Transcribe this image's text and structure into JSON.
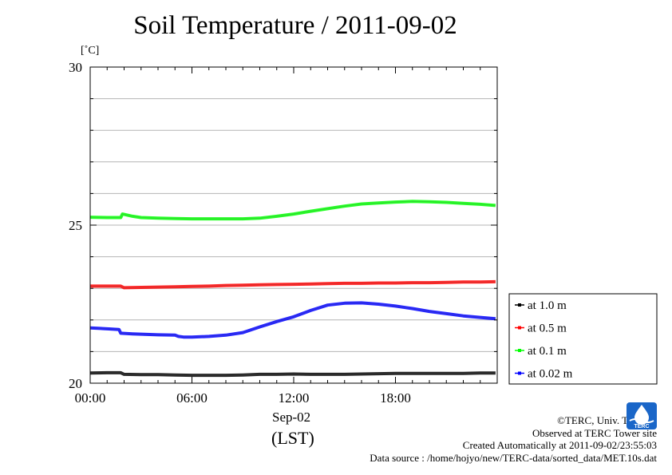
{
  "header": {
    "title": "Soil Temperature / 2011-09-02",
    "unit": "[˚C]"
  },
  "footer": {
    "date_label": "Sep-02",
    "timezone_label": "(LST)",
    "credits": [
      "©TERC, Univ. Tsukuba",
      "Observed at TERC Tower site",
      "Created Automatically at 2011-09-02/23:55:03",
      "Data source : /home/hojyo/new/TERC-data/sorted_data/MET.10s.dat"
    ],
    "logo_text": "TERC"
  },
  "chart_data": {
    "type": "line",
    "title": "Soil Temperature / 2011-09-02",
    "xlabel": "(LST)",
    "ylabel": "[˚C]",
    "xlim": [
      0,
      24
    ],
    "ylim": [
      20,
      30
    ],
    "x_ticks": [
      "00:00",
      "06:00",
      "12:00",
      "18:00"
    ],
    "y_ticks": [
      "20",
      "25",
      "30"
    ],
    "grid": true,
    "legend_position": "right",
    "series": [
      {
        "name": "at 1.0 m",
        "color": "#000000",
        "x": [
          0,
          1,
          1.8,
          2,
          3,
          4,
          5,
          6,
          7,
          8,
          9,
          10,
          11,
          12,
          13,
          14,
          15,
          16,
          17,
          18,
          19,
          20,
          21,
          22,
          23,
          23.9
        ],
        "y": [
          20.32,
          20.33,
          20.33,
          20.28,
          20.27,
          20.27,
          20.26,
          20.25,
          20.25,
          20.25,
          20.26,
          20.28,
          20.28,
          20.29,
          20.28,
          20.28,
          20.28,
          20.29,
          20.3,
          20.31,
          20.31,
          20.31,
          20.31,
          20.31,
          20.32,
          20.32
        ]
      },
      {
        "name": "at 0.5 m",
        "color": "#ff0000",
        "x": [
          0,
          1,
          1.8,
          2,
          3,
          4,
          5,
          6,
          7,
          8,
          9,
          10,
          11,
          12,
          13,
          14,
          15,
          16,
          17,
          18,
          19,
          20,
          21,
          22,
          23,
          23.9
        ],
        "y": [
          23.07,
          23.07,
          23.07,
          23.02,
          23.03,
          23.04,
          23.05,
          23.06,
          23.07,
          23.09,
          23.1,
          23.11,
          23.12,
          23.13,
          23.14,
          23.15,
          23.16,
          23.16,
          23.17,
          23.17,
          23.18,
          23.18,
          23.19,
          23.2,
          23.2,
          23.21
        ]
      },
      {
        "name": "at 0.1 m",
        "color": "#00ff00",
        "x": [
          0,
          1,
          1.8,
          1.9,
          2.5,
          3,
          4,
          5,
          6,
          7,
          8,
          9,
          10,
          11,
          12,
          13,
          14,
          15,
          16,
          17,
          18,
          19,
          20,
          21,
          22,
          23,
          23.9
        ],
        "y": [
          25.25,
          25.24,
          25.24,
          25.35,
          25.28,
          25.24,
          25.22,
          25.21,
          25.2,
          25.2,
          25.2,
          25.2,
          25.22,
          25.28,
          25.35,
          25.44,
          25.52,
          25.6,
          25.67,
          25.7,
          25.73,
          25.75,
          25.74,
          25.72,
          25.69,
          25.66,
          25.62
        ]
      },
      {
        "name": "at 0.02 m",
        "color": "#0000ff",
        "x": [
          0,
          1,
          1.7,
          1.8,
          2.5,
          3,
          4,
          5,
          5.2,
          5.5,
          6,
          7,
          8,
          9,
          10,
          11,
          12,
          13,
          14,
          15,
          16,
          17,
          18,
          19,
          20,
          21,
          22,
          23,
          23.9
        ],
        "y": [
          21.75,
          21.72,
          21.7,
          21.58,
          21.56,
          21.55,
          21.53,
          21.52,
          21.48,
          21.46,
          21.46,
          21.48,
          21.52,
          21.6,
          21.78,
          21.95,
          22.1,
          22.3,
          22.47,
          22.53,
          22.54,
          22.5,
          22.44,
          22.36,
          22.27,
          22.2,
          22.13,
          22.08,
          22.04
        ]
      }
    ]
  }
}
